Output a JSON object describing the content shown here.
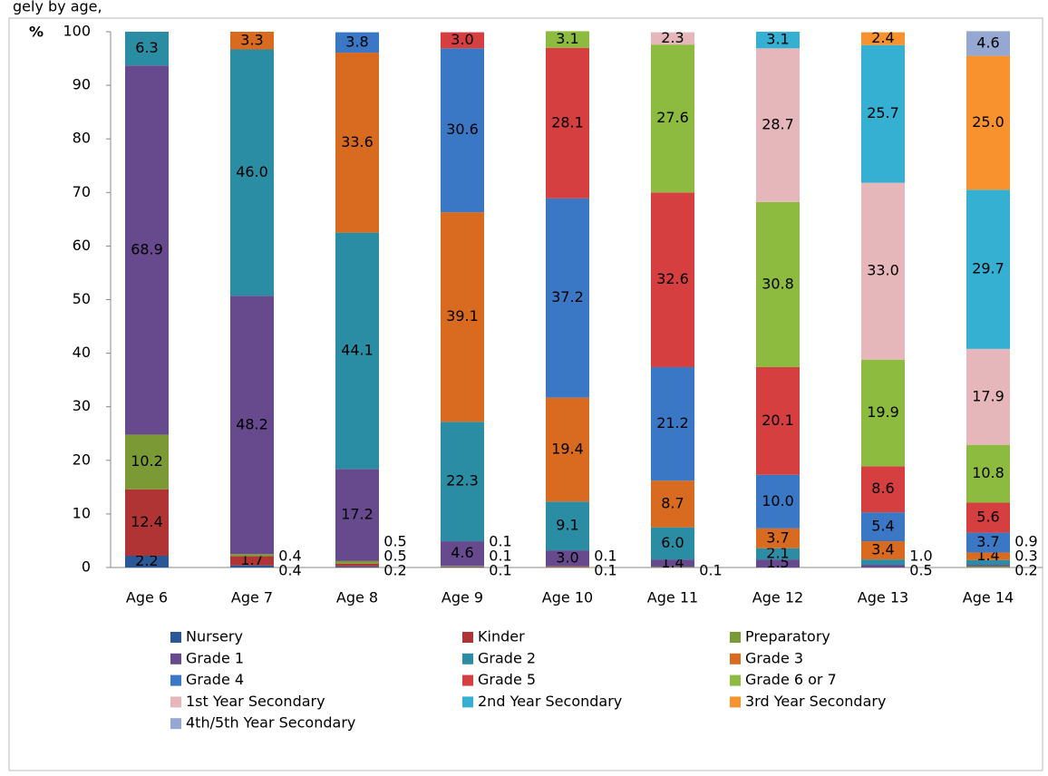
{
  "chart_data": {
    "type": "stacked_bar",
    "title": "gely by age,",
    "y_label": "%",
    "categories": [
      "Age 6",
      "Age 7",
      "Age 8",
      "Age 9",
      "Age 10",
      "Age 11",
      "Age 12",
      "Age 13",
      "Age 14"
    ],
    "ylim": [
      0,
      100
    ],
    "yticks": [
      0,
      10,
      20,
      30,
      40,
      50,
      60,
      70,
      80,
      90,
      100
    ],
    "series": [
      {
        "name": "Nursery",
        "color": "#2a5896",
        "values": [
          2.2,
          0.4,
          0.2,
          0.1,
          null,
          null,
          null,
          null,
          null
        ],
        "value_labels": [
          "2.2",
          "0.4",
          "0.2",
          "0.1",
          null,
          null,
          null,
          null,
          null
        ]
      },
      {
        "name": "Kinder",
        "color": "#b03434",
        "values": [
          12.4,
          1.7,
          0.5,
          0.1,
          0.1,
          null,
          null,
          null,
          null
        ],
        "value_labels": [
          "12.4",
          "1.7",
          "0.5",
          "0.1",
          "0.1",
          null,
          null,
          null,
          null
        ]
      },
      {
        "name": "Preparatory",
        "color": "#7b9a36",
        "values": [
          10.2,
          0.4,
          0.5,
          0.1,
          0.1,
          0.1,
          null,
          null,
          0.2
        ],
        "value_labels": [
          "10.2",
          "0.4",
          "0.5",
          "0.1",
          "0.1",
          "0.1",
          null,
          null,
          "0.2"
        ]
      },
      {
        "name": "Grade 1",
        "color": "#674a8e",
        "values": [
          68.9,
          48.2,
          17.2,
          4.6,
          3.0,
          1.4,
          1.5,
          0.5,
          0.3
        ],
        "value_labels": [
          "68.9",
          "48.2",
          "17.2",
          "4.6",
          "3.0",
          "1.4",
          "1.5",
          "0.5",
          "0.3"
        ]
      },
      {
        "name": "Grade 2",
        "color": "#2b8da3",
        "values": [
          6.3,
          46.0,
          44.1,
          22.3,
          9.1,
          6.0,
          2.1,
          1.0,
          0.9
        ],
        "value_labels": [
          "6.3",
          "46.0",
          "44.1",
          "22.3",
          "9.1",
          "6.0",
          "2.1",
          "1.0",
          "0.9"
        ]
      },
      {
        "name": "Grade 3",
        "color": "#d86b1f",
        "values": [
          null,
          3.3,
          33.6,
          39.1,
          19.4,
          8.7,
          3.7,
          3.4,
          1.4
        ],
        "value_labels": [
          null,
          "3.3",
          "33.6",
          "39.1",
          "19.4",
          "8.7",
          "3.7",
          "3.4",
          "1.4"
        ]
      },
      {
        "name": "Grade 4",
        "color": "#3a78c6",
        "values": [
          null,
          null,
          3.8,
          30.6,
          37.2,
          21.2,
          10.0,
          5.4,
          3.7
        ],
        "value_labels": [
          null,
          null,
          "3.8",
          "30.6",
          "37.2",
          "21.2",
          "10.0",
          "5.4",
          "3.7"
        ]
      },
      {
        "name": "Grade 5",
        "color": "#d63f3f",
        "values": [
          null,
          null,
          null,
          3.0,
          28.1,
          32.6,
          20.1,
          8.6,
          5.6
        ],
        "value_labels": [
          null,
          null,
          null,
          "3.0",
          "28.1",
          "32.6",
          "20.1",
          "8.6",
          "5.6"
        ]
      },
      {
        "name": "Grade 6 or 7",
        "color": "#8dbb40",
        "values": [
          null,
          null,
          null,
          null,
          3.1,
          27.6,
          30.8,
          19.9,
          10.8
        ],
        "value_labels": [
          null,
          null,
          null,
          null,
          "3.1",
          "27.6",
          "30.8",
          "19.9",
          "10.8"
        ]
      },
      {
        "name": "1st Year Secondary",
        "color": "#e6b7ba",
        "values": [
          null,
          null,
          null,
          null,
          null,
          2.3,
          28.7,
          33.0,
          17.9
        ],
        "value_labels": [
          null,
          null,
          null,
          null,
          null,
          "2.3",
          "28.7",
          "33.0",
          "17.9"
        ]
      },
      {
        "name": "2nd Year Secondary",
        "color": "#35b0d2",
        "values": [
          null,
          null,
          null,
          null,
          null,
          null,
          3.1,
          25.7,
          29.7
        ],
        "value_labels": [
          null,
          null,
          null,
          null,
          null,
          null,
          "3.1",
          "25.7",
          "29.7"
        ]
      },
      {
        "name": "3rd Year Secondary",
        "color": "#f7922e",
        "values": [
          null,
          null,
          null,
          null,
          null,
          null,
          null,
          2.4,
          25.0
        ],
        "value_labels": [
          null,
          null,
          null,
          null,
          null,
          null,
          null,
          "2.4",
          "25.0"
        ]
      },
      {
        "name": "4th/5th Year Secondary",
        "color": "#94a8d2",
        "values": [
          null,
          null,
          null,
          null,
          null,
          null,
          null,
          null,
          4.6
        ],
        "value_labels": [
          null,
          null,
          null,
          null,
          null,
          null,
          null,
          null,
          "4.6"
        ]
      }
    ]
  }
}
